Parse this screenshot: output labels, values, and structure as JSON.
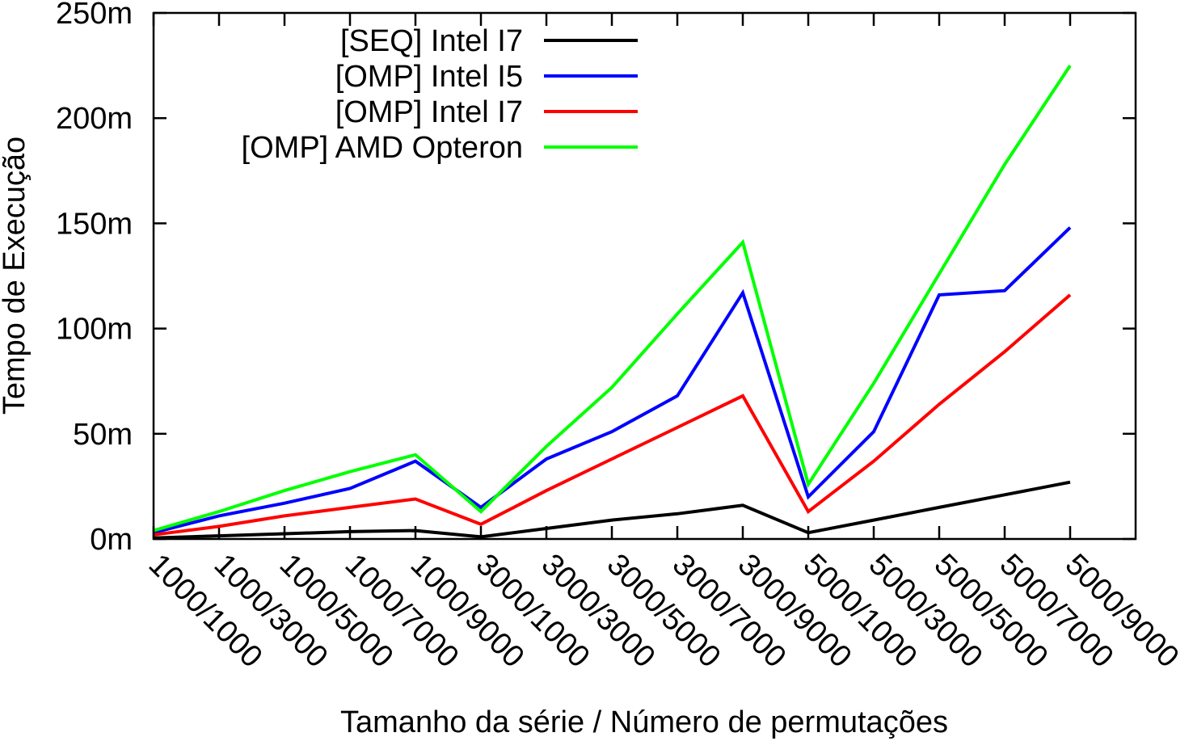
{
  "chart_data": {
    "type": "line",
    "title": "",
    "xlabel": "Tamanho da série / Número de permutações",
    "ylabel": "Tempo de Execução",
    "categories": [
      "1000/1000",
      "1000/3000",
      "1000/5000",
      "1000/7000",
      "1000/9000",
      "3000/1000",
      "3000/3000",
      "3000/5000",
      "3000/7000",
      "3000/9000",
      "5000/1000",
      "5000/3000",
      "5000/5000",
      "5000/7000",
      "5000/9000"
    ],
    "ylim": [
      0,
      250
    ],
    "yticks": [
      {
        "value": 0,
        "label": "0m"
      },
      {
        "value": 50,
        "label": "50m"
      },
      {
        "value": 100,
        "label": "100m"
      },
      {
        "value": 150,
        "label": "150m"
      },
      {
        "value": 200,
        "label": "200m"
      },
      {
        "value": 250,
        "label": "250m"
      }
    ],
    "legend_position": "top-left",
    "grid": false,
    "series": [
      {
        "name": "[SEQ] Intel I7",
        "color": "#000000",
        "values": [
          0.5,
          1.5,
          2.5,
          3.5,
          4,
          1,
          5,
          9,
          12,
          16,
          3,
          9,
          15,
          21,
          27
        ]
      },
      {
        "name": "[OMP] Intel I5",
        "color": "#0000ff",
        "values": [
          3,
          11,
          17,
          24,
          37,
          15,
          38,
          51,
          68,
          117,
          20,
          51,
          116,
          118,
          148
        ]
      },
      {
        "name": "[OMP] Intel I7",
        "color": "#ff0000",
        "values": [
          2,
          6,
          11,
          15,
          19,
          7,
          23,
          38,
          53,
          68,
          13,
          37,
          64,
          89,
          116
        ]
      },
      {
        "name": "[OMP] AMD Opteron",
        "color": "#00ff00",
        "values": [
          4,
          13,
          23,
          32,
          40,
          13,
          44,
          72,
          107,
          141,
          26,
          74,
          126,
          178,
          225
        ]
      }
    ]
  }
}
